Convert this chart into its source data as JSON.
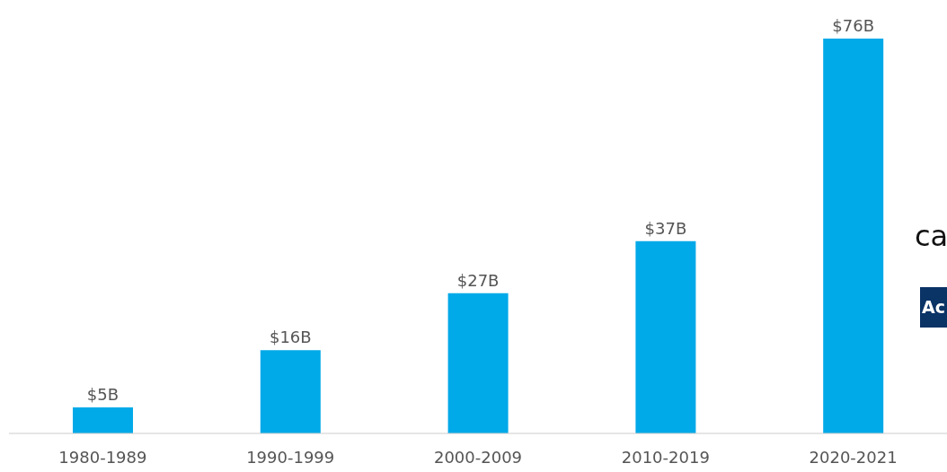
{
  "chart_data": {
    "type": "bar",
    "categories": [
      "1980-1989",
      "1990-1999",
      "2000-2009",
      "2010-2019",
      "2020-2021"
    ],
    "values": [
      5,
      16,
      27,
      37,
      76
    ],
    "value_labels": [
      "$5B",
      "$16B",
      "$27B",
      "$37B",
      "$76B"
    ],
    "color": "#00a9e8",
    "annotations": [
      "ca",
      "Ac"
    ]
  }
}
